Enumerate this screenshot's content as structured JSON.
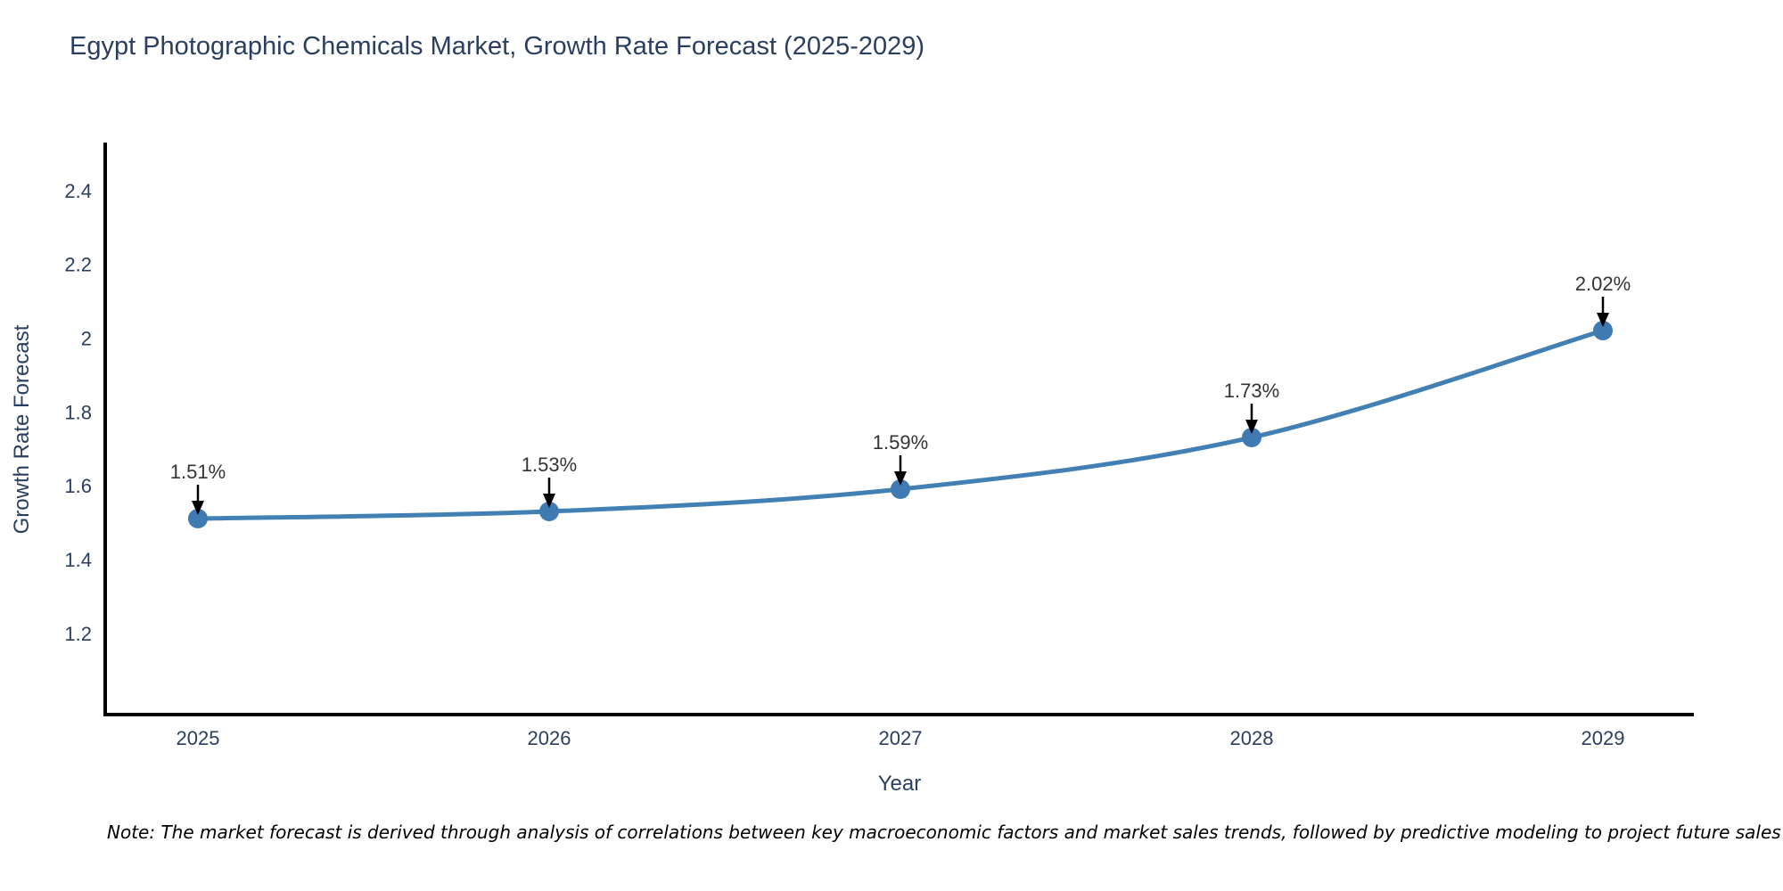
{
  "note": {
    "text": "Note: The market forecast is derived through analysis of correlations between key macroeconomic factors and market sales trends, followed by predictive modeling to project future sales"
  },
  "chart_data": {
    "type": "line",
    "title": "Egypt Photographic Chemicals Market, Growth Rate Forecast (2025-2029)",
    "xlabel": "Year",
    "ylabel": "Growth Rate Forecast",
    "categories": [
      "2025",
      "2026",
      "2027",
      "2028",
      "2029"
    ],
    "series": [
      {
        "name": "Growth Rate Forecast",
        "values": [
          1.51,
          1.53,
          1.59,
          1.73,
          2.02
        ]
      }
    ],
    "data_labels": [
      "1.51%",
      "1.53%",
      "1.59%",
      "1.73%",
      "2.02%"
    ],
    "y_ticks": [
      2.4,
      2.2,
      2,
      1.8,
      1.6,
      1.4,
      1.2
    ],
    "ylim": [
      0.98,
      2.53
    ],
    "grid": false,
    "legend_position": "none",
    "line_shape": "spline",
    "colors": {
      "line": "#4280b4",
      "marker": "#3f7ab3",
      "annotation_arrow": "#000000",
      "annotation_text": "#333333",
      "axis": "#000000",
      "tick_text": "#2a3f5f",
      "title_text": "#2a3f5f"
    }
  }
}
